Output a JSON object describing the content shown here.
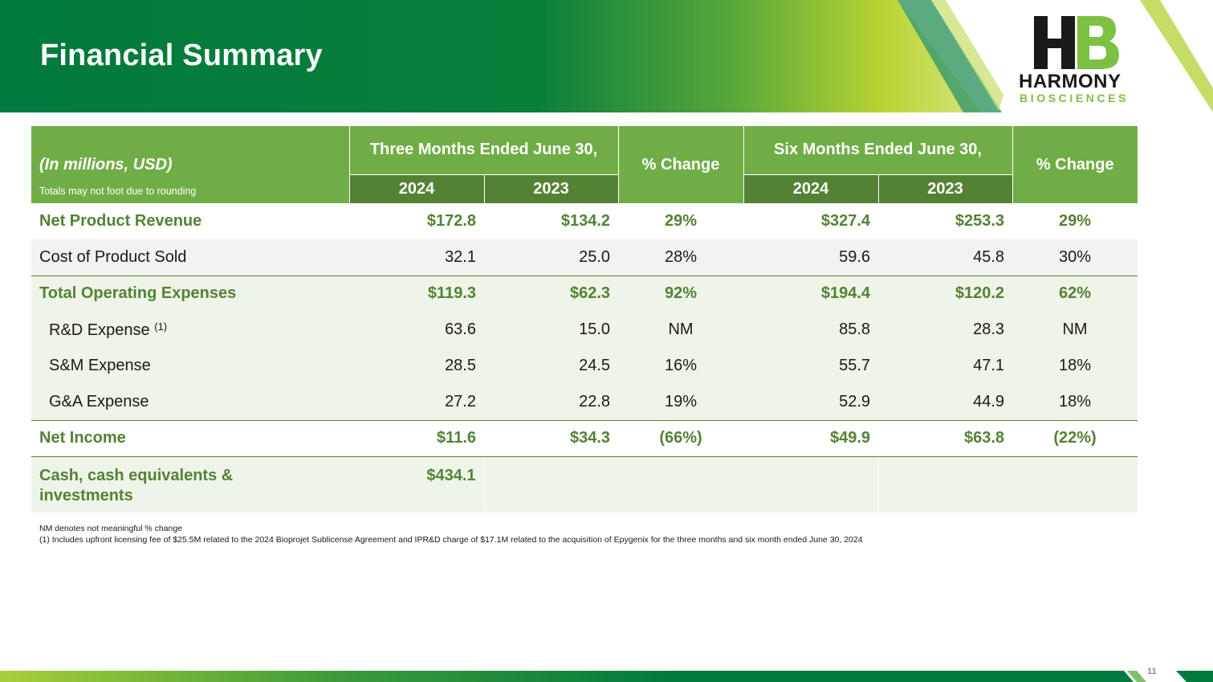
{
  "slide": {
    "title": "Financial Summary",
    "page_number": "11"
  },
  "logo": {
    "line1": "HARMONY",
    "line2": "BIOSCIENCES",
    "monogram": "HB"
  },
  "table": {
    "corner_title": "(In millions, USD)",
    "corner_note": "Totals may not foot due to rounding",
    "group1": "Three Months Ended June 30,",
    "group2": "Six Months Ended June 30,",
    "change_label": "% Change",
    "year_a": "2024",
    "year_b": "2023",
    "rows": [
      {
        "label": "Net Product Revenue",
        "q24": "$172.8",
        "q23": "$134.2",
        "qchg": "29%",
        "h24": "$327.4",
        "h23": "$253.3",
        "hchg": "29%"
      },
      {
        "label": "Cost of Product Sold",
        "q24": "32.1",
        "q23": "25.0",
        "qchg": "28%",
        "h24": "59.6",
        "h23": "45.8",
        "hchg": "30%"
      },
      {
        "label": "Total Operating Expenses",
        "q24": "$119.3",
        "q23": "$62.3",
        "qchg": "92%",
        "h24": "$194.4",
        "h23": "$120.2",
        "hchg": "62%"
      },
      {
        "label": "R&D Expense",
        "footnote": "(1)",
        "q24": "63.6",
        "q23": "15.0",
        "qchg": "NM",
        "h24": "85.8",
        "h23": "28.3",
        "hchg": "NM"
      },
      {
        "label": "S&M Expense",
        "q24": "28.5",
        "q23": "24.5",
        "qchg": "16%",
        "h24": "55.7",
        "h23": "47.1",
        "hchg": "18%"
      },
      {
        "label": "G&A Expense",
        "q24": "27.2",
        "q23": "22.8",
        "qchg": "19%",
        "h24": "52.9",
        "h23": "44.9",
        "hchg": "18%"
      },
      {
        "label": "Net Income",
        "q24": "$11.6",
        "q23": "$34.3",
        "qchg": "(66%)",
        "h24": "$49.9",
        "h23": "$63.8",
        "hchg": "(22%)"
      },
      {
        "label": "Cash, cash equivalents & investments",
        "q24": "$434.1"
      }
    ]
  },
  "footnotes": {
    "nm": "NM denotes not meaningful % change",
    "note1": "(1) Includes upfront licensing fee of $25.5M related to the 2024 Bioprojet Sublicense Agreement and IPR&D charge of $17.1M related to the acquisition of Epygenix for the three months and six month ended June 30, 2024"
  },
  "colors": {
    "dark_green": "#007a3d",
    "header_green": "#70ad47",
    "year_green": "#548235",
    "lime": "#a8cf38"
  }
}
